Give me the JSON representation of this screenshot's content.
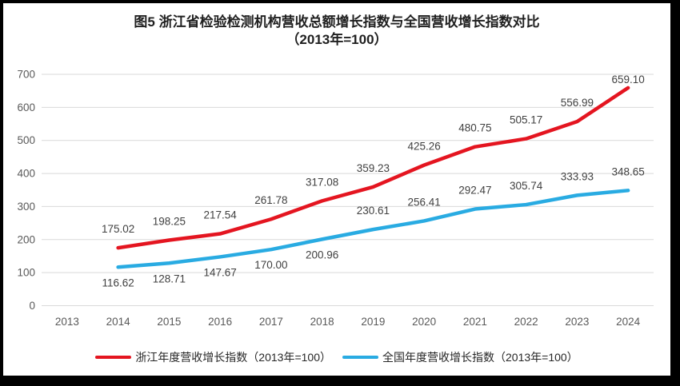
{
  "title": {
    "line1": "图5  浙江省检验检测机构营收总额增长指数与全国营收增长指数对比",
    "line2": "（2013年=100）"
  },
  "chart_data": {
    "type": "line",
    "title": "图5 浙江省检验检测机构营收总额增长指数与全国营收增长指数对比（2013年=100）",
    "xlabel": "",
    "ylabel": "",
    "categories": [
      "2013",
      "2014",
      "2015",
      "2016",
      "2017",
      "2018",
      "2019",
      "2020",
      "2021",
      "2022",
      "2023",
      "2024"
    ],
    "ylim": [
      0,
      700
    ],
    "ytick_step": 100,
    "grid": true,
    "legend_position": "bottom",
    "base_note": "2013年=100",
    "series": [
      {
        "name": "浙江年度营收增长指数（2013年=100）",
        "color": "#e41520",
        "start_category_index": 1,
        "values": [
          175.02,
          198.25,
          217.54,
          261.78,
          317.08,
          359.23,
          425.26,
          480.75,
          505.17,
          556.99,
          659.1
        ],
        "label_dy": [
          -19,
          -19,
          -19,
          -19,
          -19,
          -19,
          -19,
          -19,
          -19,
          -19,
          -6
        ]
      },
      {
        "name": "全国年度营收增长指数（2013年=100）",
        "color": "#29abe2",
        "start_category_index": 1,
        "values": [
          116.62,
          128.71,
          147.67,
          170.0,
          200.96,
          230.61,
          256.41,
          292.47,
          305.74,
          333.93,
          348.65
        ],
        "label_dy": [
          24,
          24,
          24,
          24,
          24,
          -19,
          -19,
          -19,
          -19,
          -19,
          -19
        ]
      }
    ],
    "colors": {
      "gridline": "#d9d9d9",
      "axis_label": "#595959",
      "data_label": "#404040"
    }
  }
}
